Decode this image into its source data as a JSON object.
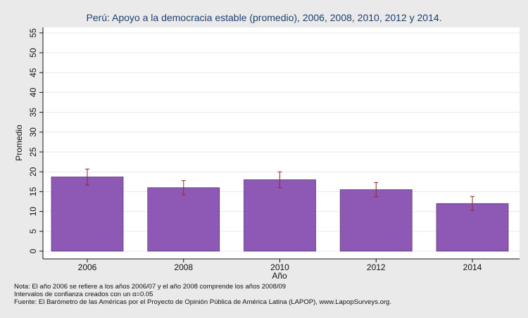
{
  "chart_data": {
    "type": "bar",
    "title": "Perú: Apoyo a la democracia estable (promedio), 2006, 2008, 2010, 2012 y 2014.",
    "xlabel": "Año",
    "ylabel": "Promedio",
    "categories": [
      "2006",
      "2008",
      "2010",
      "2012",
      "2014"
    ],
    "values": [
      18.7,
      16.0,
      18.0,
      15.5,
      12.0
    ],
    "ci_low": [
      16.7,
      14.2,
      16.0,
      13.7,
      10.3
    ],
    "ci_high": [
      20.7,
      17.8,
      20.0,
      17.3,
      13.8
    ],
    "ylim": [
      0,
      57
    ],
    "yticks": [
      0,
      5,
      10,
      15,
      20,
      25,
      30,
      35,
      40,
      45,
      50,
      55
    ],
    "grid": true,
    "colors": {
      "bar": "#8e59b5",
      "bar_edge": "#5c3a7a",
      "error_bar": "#8a2a2a",
      "grid": "#eaeaea",
      "plot_bg": "#ffffff",
      "figure_bg": "#eaeaea"
    }
  },
  "notes": [
    "Nota: El año 2006 se refiere a los años 2006/07 y el año 2008 comprende los años 2008/09",
    "Intervalos de confianza creados con un α=0.05",
    "Fuente: El Barómetro de las Américas por el Proyecto de Opinión Pública de América Latina (LAPOP), www.LapopSurveys.org."
  ]
}
